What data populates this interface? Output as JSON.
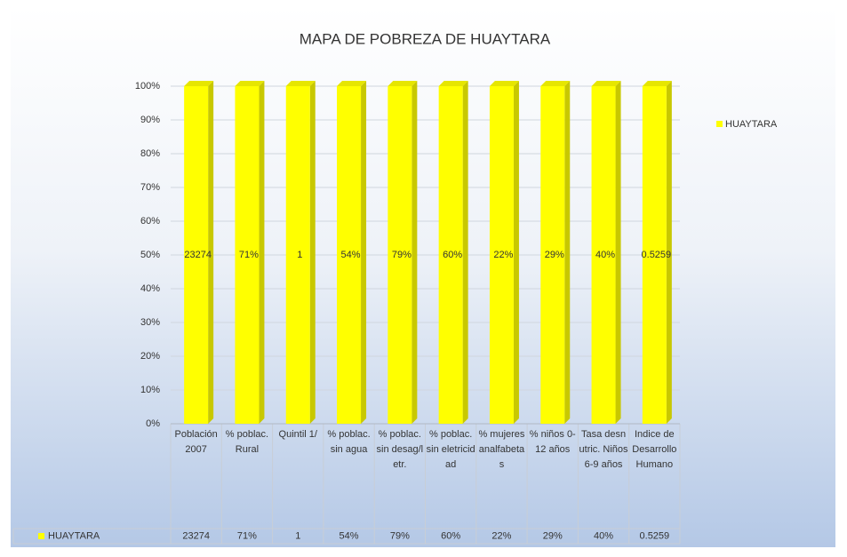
{
  "chart_data": {
    "type": "bar",
    "stacking": "percent",
    "title": "MAPA DE POBREZA DE HUAYTARA",
    "categories": [
      "Población 2007",
      "% poblac. Rural",
      "Quintil 1/",
      "% poblac. sin agua",
      "% poblac. sin desag/letr.",
      "% poblac. sin eletricidad",
      "% mujeres analfabetas",
      "% niños 0-12 años",
      "Tasa desnutric. Niños 6-9 años",
      "Indice de Desarrollo Humano"
    ],
    "series": [
      {
        "name": "HUAYTARA",
        "color": "#ffff00",
        "values": [
          23274,
          71,
          1,
          54,
          79,
          60,
          22,
          29,
          40,
          0.5259
        ],
        "value_labels": [
          "23274",
          "71%",
          "1",
          "54%",
          "79%",
          "60%",
          "22%",
          "29%",
          "40%",
          "0.5259"
        ]
      }
    ],
    "ylim": [
      0,
      100
    ],
    "yticks": [
      {
        "value": 0,
        "label": "0%"
      },
      {
        "value": 10,
        "label": "10%"
      },
      {
        "value": 20,
        "label": "20%"
      },
      {
        "value": 30,
        "label": "30%"
      },
      {
        "value": 40,
        "label": "40%"
      },
      {
        "value": 50,
        "label": "50%"
      },
      {
        "value": 60,
        "label": "60%"
      },
      {
        "value": 70,
        "label": "70%"
      },
      {
        "value": 80,
        "label": "80%"
      },
      {
        "value": 90,
        "label": "90%"
      },
      {
        "value": 100,
        "label": "100%"
      }
    ],
    "grid": true,
    "legend": "right",
    "data_table": true
  }
}
